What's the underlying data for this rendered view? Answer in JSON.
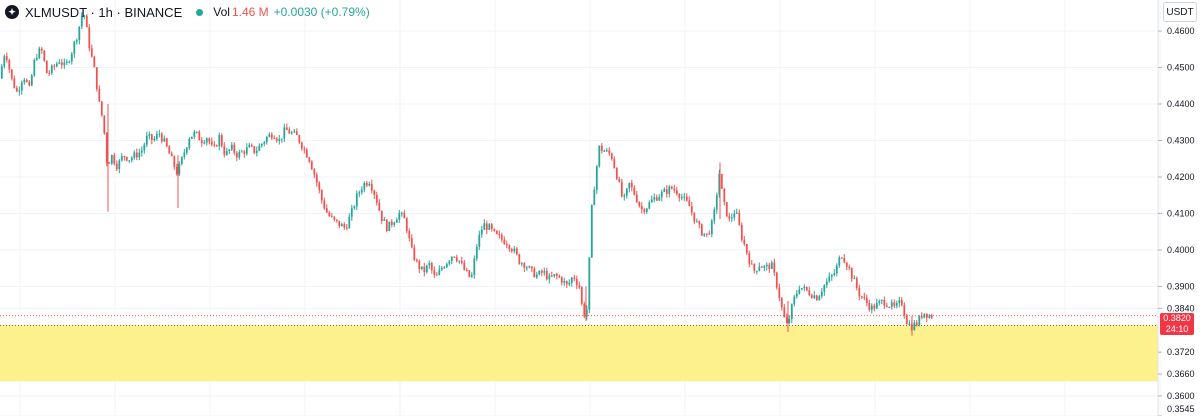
{
  "header": {
    "symbol": "XLMUSDT · 1h · BINANCE",
    "vol_label": "Vol",
    "vol_value": "1.46 M",
    "change": "+0.0030 (+0.79%)",
    "currency": "USDT"
  },
  "colors": {
    "up": "#26a69a",
    "down": "#ef5350",
    "zone_fill": "#fdf18d",
    "grid": "#f0f3fa",
    "last_price_tag": "#f23645"
  },
  "chart_data": {
    "type": "candlestick",
    "symbol": "XLMUSDT",
    "interval": "1h",
    "exchange": "BINANCE",
    "ylim": [
      0.3545,
      0.4685
    ],
    "y_ticks": [
      "0.4600",
      "0.4500",
      "0.4400",
      "0.4300",
      "0.4200",
      "0.4100",
      "0.4000",
      "0.3900",
      "0.3840",
      "0.3720",
      "0.3660",
      "0.3600",
      "0.3545"
    ],
    "last_price": "0.3820",
    "countdown": "24:10",
    "support_zone": [
      0.364,
      0.3793
    ],
    "close_path": [
      [
        0,
        0.447
      ],
      [
        6,
        0.455
      ],
      [
        12,
        0.447
      ],
      [
        18,
        0.443
      ],
      [
        24,
        0.448
      ],
      [
        30,
        0.444
      ],
      [
        36,
        0.453
      ],
      [
        42,
        0.455
      ],
      [
        48,
        0.448
      ],
      [
        54,
        0.45
      ],
      [
        60,
        0.452
      ],
      [
        66,
        0.45
      ],
      [
        72,
        0.454
      ],
      [
        78,
        0.459
      ],
      [
        84,
        0.466
      ],
      [
        90,
        0.456
      ],
      [
        96,
        0.448
      ],
      [
        100,
        0.44
      ],
      [
        104,
        0.435
      ],
      [
        108,
        0.423
      ],
      [
        112,
        0.426
      ],
      [
        118,
        0.423
      ],
      [
        124,
        0.426
      ],
      [
        130,
        0.425
      ],
      [
        136,
        0.426
      ],
      [
        142,
        0.427
      ],
      [
        148,
        0.431
      ],
      [
        154,
        0.43
      ],
      [
        160,
        0.432
      ],
      [
        166,
        0.429
      ],
      [
        172,
        0.425
      ],
      [
        178,
        0.421
      ],
      [
        184,
        0.426
      ],
      [
        190,
        0.431
      ],
      [
        196,
        0.432
      ],
      [
        202,
        0.43
      ],
      [
        208,
        0.431
      ],
      [
        214,
        0.427
      ],
      [
        220,
        0.431
      ],
      [
        226,
        0.426
      ],
      [
        232,
        0.428
      ],
      [
        238,
        0.426
      ],
      [
        244,
        0.427
      ],
      [
        250,
        0.428
      ],
      [
        256,
        0.427
      ],
      [
        262,
        0.429
      ],
      [
        268,
        0.431
      ],
      [
        274,
        0.432
      ],
      [
        280,
        0.43
      ],
      [
        286,
        0.433
      ],
      [
        292,
        0.432
      ],
      [
        298,
        0.431
      ],
      [
        304,
        0.428
      ],
      [
        310,
        0.425
      ],
      [
        316,
        0.42
      ],
      [
        322,
        0.414
      ],
      [
        328,
        0.41
      ],
      [
        334,
        0.408
      ],
      [
        340,
        0.407
      ],
      [
        346,
        0.406
      ],
      [
        352,
        0.41
      ],
      [
        358,
        0.415
      ],
      [
        364,
        0.418
      ],
      [
        370,
        0.419
      ],
      [
        376,
        0.415
      ],
      [
        382,
        0.409
      ],
      [
        388,
        0.406
      ],
      [
        394,
        0.408
      ],
      [
        400,
        0.41
      ],
      [
        406,
        0.408
      ],
      [
        412,
        0.4
      ],
      [
        418,
        0.396
      ],
      [
        424,
        0.394
      ],
      [
        430,
        0.396
      ],
      [
        436,
        0.392
      ],
      [
        442,
        0.395
      ],
      [
        448,
        0.397
      ],
      [
        454,
        0.399
      ],
      [
        460,
        0.397
      ],
      [
        466,
        0.394
      ],
      [
        472,
        0.392
      ],
      [
        478,
        0.402
      ],
      [
        484,
        0.407
      ],
      [
        490,
        0.406
      ],
      [
        496,
        0.404
      ],
      [
        502,
        0.403
      ],
      [
        508,
        0.402
      ],
      [
        514,
        0.4
      ],
      [
        520,
        0.397
      ],
      [
        526,
        0.396
      ],
      [
        532,
        0.394
      ],
      [
        538,
        0.393
      ],
      [
        544,
        0.394
      ],
      [
        550,
        0.392
      ],
      [
        556,
        0.393
      ],
      [
        562,
        0.392
      ],
      [
        568,
        0.39
      ],
      [
        574,
        0.393
      ],
      [
        580,
        0.39
      ],
      [
        584,
        0.382
      ],
      [
        588,
        0.384
      ],
      [
        592,
        0.41
      ],
      [
        596,
        0.42
      ],
      [
        600,
        0.428
      ],
      [
        606,
        0.427
      ],
      [
        612,
        0.426
      ],
      [
        618,
        0.42
      ],
      [
        624,
        0.413
      ],
      [
        630,
        0.418
      ],
      [
        636,
        0.415
      ],
      [
        642,
        0.411
      ],
      [
        648,
        0.412
      ],
      [
        654,
        0.414
      ],
      [
        660,
        0.415
      ],
      [
        666,
        0.416
      ],
      [
        672,
        0.417
      ],
      [
        678,
        0.416
      ],
      [
        684,
        0.414
      ],
      [
        690,
        0.412
      ],
      [
        696,
        0.408
      ],
      [
        702,
        0.405
      ],
      [
        708,
        0.404
      ],
      [
        714,
        0.408
      ],
      [
        720,
        0.421
      ],
      [
        724,
        0.413
      ],
      [
        730,
        0.408
      ],
      [
        736,
        0.411
      ],
      [
        742,
        0.404
      ],
      [
        748,
        0.399
      ],
      [
        754,
        0.394
      ],
      [
        760,
        0.396
      ],
      [
        766,
        0.395
      ],
      [
        772,
        0.396
      ],
      [
        778,
        0.39
      ],
      [
        784,
        0.382
      ],
      [
        788,
        0.379
      ],
      [
        794,
        0.386
      ],
      [
        800,
        0.39
      ],
      [
        806,
        0.389
      ],
      [
        812,
        0.388
      ],
      [
        818,
        0.387
      ],
      [
        824,
        0.39
      ],
      [
        830,
        0.392
      ],
      [
        836,
        0.394
      ],
      [
        842,
        0.399
      ],
      [
        848,
        0.396
      ],
      [
        854,
        0.392
      ],
      [
        860,
        0.388
      ],
      [
        866,
        0.386
      ],
      [
        872,
        0.384
      ],
      [
        878,
        0.385
      ],
      [
        884,
        0.386
      ],
      [
        890,
        0.385
      ],
      [
        896,
        0.384
      ],
      [
        902,
        0.386
      ],
      [
        908,
        0.38
      ],
      [
        912,
        0.379
      ],
      [
        918,
        0.38
      ],
      [
        924,
        0.383
      ],
      [
        930,
        0.382
      ]
    ]
  }
}
